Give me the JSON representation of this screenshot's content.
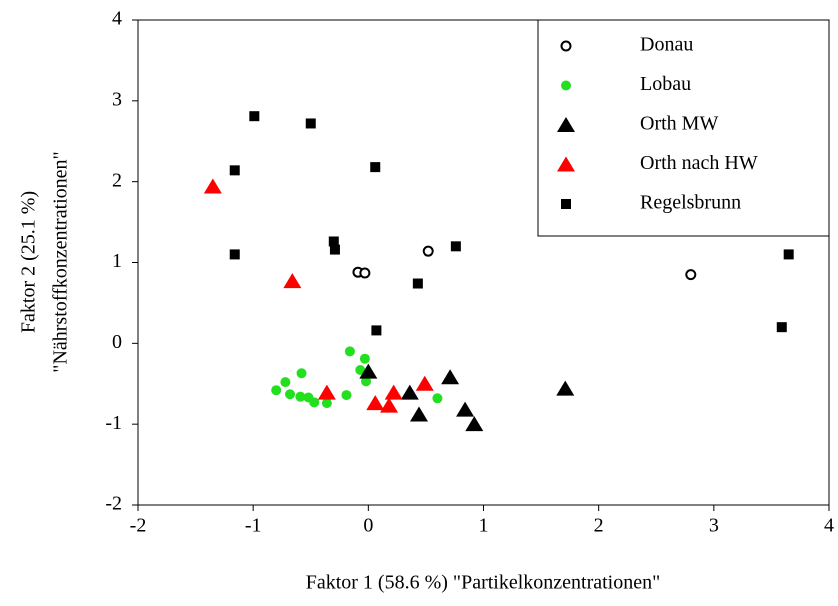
{
  "chart_data": {
    "type": "scatter",
    "xlabel": "Faktor 1 (58.6 %) \"Partikelkonzentrationen\"",
    "ylabel": [
      "Faktor 2 (25.1 %)",
      "\"Nährstoffkonzentrationen\""
    ],
    "xlim": [
      -2,
      4
    ],
    "xticks": [
      -2,
      -1,
      0,
      1,
      2,
      3,
      4
    ],
    "ylim": [
      -2,
      4
    ],
    "yticks": [
      -2,
      -1,
      0,
      1,
      2,
      3,
      4
    ],
    "legend": "top-right",
    "series": [
      {
        "name": "Donau",
        "color": "#000000",
        "marker": "open-circle",
        "x": [
          -0.09,
          -0.03,
          0.52,
          2.8
        ],
        "y": [
          0.88,
          0.87,
          1.14,
          0.85
        ]
      },
      {
        "name": "Lobau",
        "color": "#22e01e",
        "marker": "circle",
        "x": [
          -0.8,
          -0.72,
          -0.68,
          -0.58,
          -0.59,
          -0.52,
          -0.47,
          -0.36,
          -0.19,
          -0.16,
          -0.07,
          -0.03,
          -0.02,
          0.6
        ],
        "y": [
          -0.58,
          -0.48,
          -0.63,
          -0.37,
          -0.66,
          -0.67,
          -0.73,
          -0.74,
          -0.64,
          -0.1,
          -0.33,
          -0.19,
          -0.47,
          -0.68
        ]
      },
      {
        "name": "Orth MW",
        "color": "#000000",
        "marker": "triangle",
        "x": [
          0.0,
          0.36,
          0.44,
          0.71,
          0.84,
          0.92,
          1.71
        ],
        "y": [
          -0.35,
          -0.61,
          -0.88,
          -0.42,
          -0.82,
          -1.0,
          -0.56
        ]
      },
      {
        "name": "Orth nach HW",
        "color": "#ff0000",
        "marker": "triangle",
        "x": [
          -1.35,
          -0.66,
          -0.36,
          0.06,
          0.18,
          0.22,
          0.49
        ],
        "y": [
          1.94,
          0.77,
          -0.61,
          -0.74,
          -0.77,
          -0.61,
          -0.5
        ]
      },
      {
        "name": "Regelsbrunn",
        "color": "#000000",
        "marker": "square",
        "x": [
          -0.99,
          -0.5,
          -1.16,
          0.06,
          -0.3,
          -0.29,
          -1.16,
          0.76,
          0.43,
          0.07,
          3.59,
          3.65
        ],
        "y": [
          2.81,
          2.72,
          2.14,
          2.18,
          1.26,
          1.16,
          1.1,
          1.2,
          0.74,
          0.16,
          0.2,
          1.1
        ]
      }
    ]
  }
}
